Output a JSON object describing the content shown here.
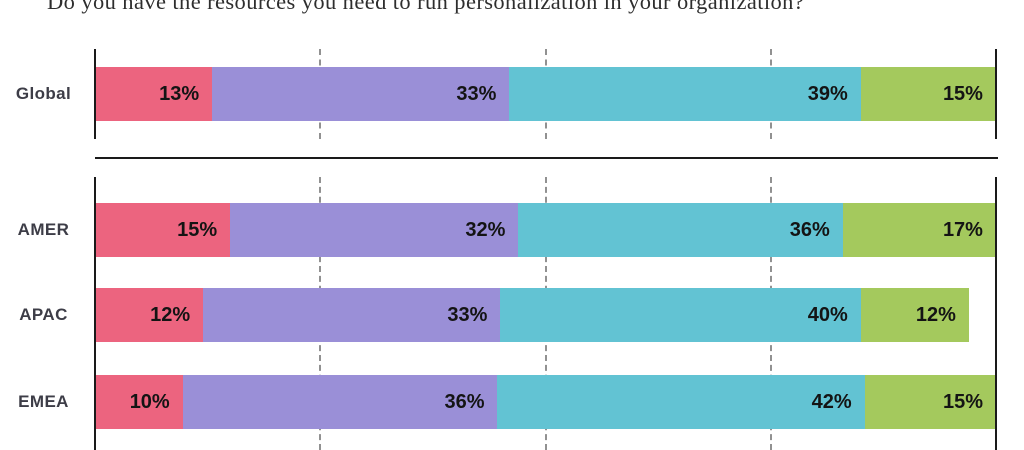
{
  "title": "Do you have the resources you need to run personalization in your organization?",
  "chart_data": {
    "type": "bar",
    "orientation": "horizontal",
    "stacked": true,
    "unit": "%",
    "title": "Do you have the resources you need to run personalization in your organization?",
    "categories": [
      "Global",
      "AMER",
      "APAC",
      "EMEA"
    ],
    "groups": [
      {
        "name": "global",
        "rows": [
          "Global"
        ]
      },
      {
        "name": "regions",
        "rows": [
          "AMER",
          "APAC",
          "EMEA"
        ]
      }
    ],
    "series": [
      {
        "name": "series-1-rose",
        "color": "#ec647f",
        "values": [
          13,
          15,
          12,
          10
        ]
      },
      {
        "name": "series-2-purple",
        "color": "#9a8fd7",
        "values": [
          33,
          32,
          33,
          36
        ]
      },
      {
        "name": "series-3-teal",
        "color": "#62c3d3",
        "values": [
          39,
          36,
          40,
          42
        ]
      },
      {
        "name": "series-4-green",
        "color": "#a4c95d",
        "values": [
          15,
          17,
          12,
          15
        ]
      }
    ],
    "value_labels": "inside-right",
    "xlim": [
      0,
      100
    ],
    "gridlines_pct": [
      25,
      50,
      75
    ],
    "grid_style": "dashed",
    "legend": "none"
  },
  "colors": {
    "axis": "#1a1a1a",
    "gridline": "#919191",
    "separator": "#1a1a1a",
    "row_label": "#3d3d47",
    "value_text": "#141414",
    "background": "#ffffff"
  }
}
